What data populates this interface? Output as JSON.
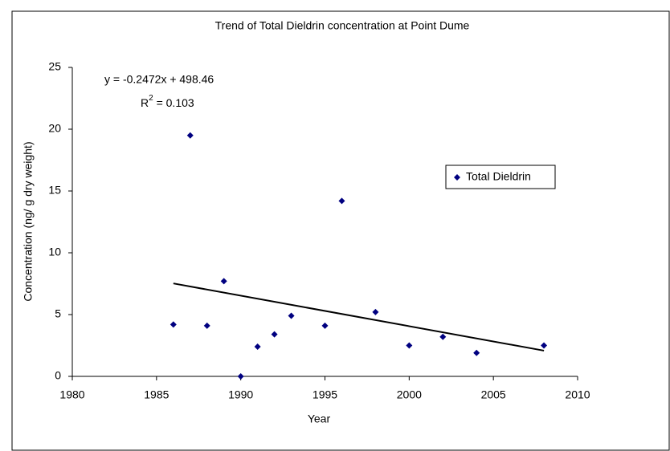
{
  "chart_data": {
    "type": "scatter",
    "title": "Trend of Total Dieldrin concentration at Point Dume",
    "x_label": "Year",
    "y_label": "Concentration (ng/ g dry weight)",
    "series": [
      {
        "name": "Total Dieldrin",
        "color": "#000080",
        "x": [
          1986,
          1987,
          1988,
          1989,
          1990,
          1991,
          1992,
          1993,
          1995,
          1996,
          1998,
          2000,
          2002,
          2004,
          2008
        ],
        "values": [
          4.2,
          19.5,
          4.1,
          7.7,
          0,
          2.4,
          3.4,
          4.9,
          4.1,
          14.2,
          5.2,
          2.5,
          3.2,
          1.9,
          2.5
        ]
      }
    ],
    "trendline": {
      "slope": -0.2472,
      "intercept": 498.46,
      "color": "#000000",
      "equation": "y = -0.2472x + 498.46",
      "r_squared_label": {
        "base": "R",
        "sup": "2",
        "rest": " = 0.103"
      }
    },
    "xlim": [
      1980,
      2010
    ],
    "xticks": [
      1980,
      1985,
      1990,
      1995,
      2000,
      2005,
      2010
    ],
    "ylim": [
      0,
      25
    ],
    "yticks": [
      0,
      5,
      10,
      15,
      20,
      25
    ],
    "grid": false,
    "legend": "right"
  }
}
